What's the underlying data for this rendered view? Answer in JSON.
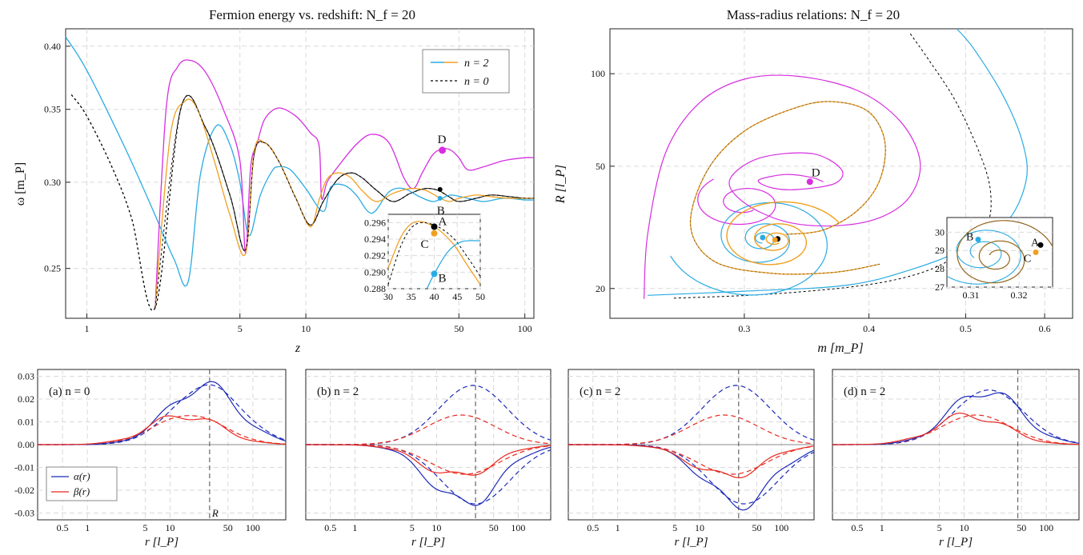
{
  "figure": {
    "top_left": {
      "title": "Fermion energy vs. redshift: N_f = 20",
      "xlabel": "z",
      "ylabel": "ω [m_P]",
      "legend": [
        "n = 2",
        "n = 0"
      ],
      "point_labels": [
        "D",
        "B"
      ],
      "inset_point_labels": [
        "A",
        "C",
        "B"
      ]
    },
    "top_right": {
      "title": "Mass-radius relations: N_f = 20",
      "xlabel": "m [m_P]",
      "ylabel": "R [l_P]",
      "point_labels": [
        "D"
      ],
      "inset_point_labels": [
        "B",
        "A",
        "C"
      ]
    },
    "bottom": {
      "panel_labels": [
        "(a) n = 0",
        "(b) n = 2",
        "(c) n = 2",
        "(d) n = 2"
      ],
      "xlabel": "r [l_P]",
      "legend": [
        "α(r)",
        "β(r)"
      ],
      "radius_label": "R"
    }
  },
  "colors": {
    "cyan": "#29abe2",
    "orange": "#f0a020",
    "magenta": "#d62ee0",
    "black_dashed": "#000000",
    "alpha_blue": "#1c2ab8",
    "beta_red": "#e8281e"
  },
  "chart_data": [
    {
      "type": "line",
      "title": "Fermion energy vs. redshift: N_f = 20",
      "xlabel": "z",
      "ylabel": "ω [m_P]",
      "x_scale": "log",
      "y_scale": "log",
      "xlim": [
        0.8,
        110
      ],
      "ylim": [
        0.225,
        0.415
      ],
      "xticks": [
        1,
        5,
        10,
        50,
        100
      ],
      "yticks": [
        0.25,
        0.3,
        0.35,
        0.4
      ],
      "series": [
        {
          "name": "n = 0",
          "color": "#000000",
          "dashed": true,
          "x": [
            0.85,
            1,
            1.3,
            1.6,
            2.05,
            2.7,
            3.5,
            4.5,
            5.3,
            5.8,
            6.5,
            7.5,
            9,
            10.5,
            12,
            14,
            16,
            18,
            21,
            25,
            30,
            35,
            40,
            45,
            50,
            60,
            70,
            85,
            100,
            110
          ],
          "y": [
            0.361,
            0.345,
            0.31,
            0.278,
            0.23,
            0.352,
            0.336,
            0.292,
            0.26,
            0.318,
            0.326,
            0.314,
            0.29,
            0.274,
            0.288,
            0.302,
            0.306,
            0.303,
            0.295,
            0.288,
            0.293,
            0.296,
            0.295,
            0.291,
            0.288,
            0.29,
            0.292,
            0.291,
            0.29,
            0.29
          ]
        },
        {
          "name": "n = 2 (cyan)",
          "color": "#29abe2",
          "x": [
            0.8,
            1,
            1.5,
            2,
            2.5,
            2.9,
            3.3,
            3.9,
            4.5,
            5,
            5.5,
            6.2,
            7,
            7.5,
            8.5,
            10,
            12,
            13,
            15,
            17,
            20,
            24,
            28,
            33,
            38,
            42,
            46,
            55,
            65,
            80,
            100,
            110
          ],
          "y": [
            0.408,
            0.38,
            0.322,
            0.283,
            0.255,
            0.243,
            0.305,
            0.338,
            0.325,
            0.3,
            0.268,
            0.292,
            0.307,
            0.31,
            0.308,
            0.296,
            0.282,
            0.297,
            0.298,
            0.292,
            0.281,
            0.294,
            0.296,
            0.291,
            0.288,
            0.29,
            0.292,
            0.29,
            0.288,
            0.29,
            0.289,
            0.289
          ]
        },
        {
          "name": "n = 2 (orange)",
          "color": "#f0a020",
          "x": [
            2.05,
            2.4,
            2.8,
            3.2,
            3.8,
            4.5,
            5.3,
            5.8,
            6.5,
            7.5,
            9,
            10.5,
            11.5,
            12.5,
            14,
            16,
            18,
            21,
            25,
            30,
            35,
            40,
            45,
            50,
            60,
            70,
            85,
            100,
            110
          ],
          "y": [
            0.23,
            0.33,
            0.356,
            0.35,
            0.315,
            0.28,
            0.258,
            0.32,
            0.326,
            0.314,
            0.29,
            0.273,
            0.289,
            0.302,
            0.306,
            0.303,
            0.295,
            0.288,
            0.293,
            0.296,
            0.295,
            0.291,
            0.288,
            0.29,
            0.292,
            0.291,
            0.29,
            0.29,
            0.29
          ]
        },
        {
          "name": "n = 2 (magenta)",
          "color": "#d62ee0",
          "x": [
            2.05,
            2.3,
            2.6,
            3,
            3.5,
            4.2,
            5,
            5.3,
            5.6,
            6,
            6.5,
            7.5,
            9,
            10.5,
            11.5,
            11.8,
            12.5,
            14,
            17,
            20,
            24,
            28,
            31,
            34,
            38,
            42,
            46,
            50,
            55,
            65,
            80,
            100,
            110
          ],
          "y": [
            0.23,
            0.35,
            0.383,
            0.388,
            0.378,
            0.35,
            0.314,
            0.258,
            0.31,
            0.326,
            0.343,
            0.351,
            0.345,
            0.333,
            0.324,
            0.29,
            0.3,
            0.31,
            0.325,
            0.332,
            0.326,
            0.303,
            0.296,
            0.306,
            0.318,
            0.322,
            0.321,
            0.316,
            0.308,
            0.31,
            0.314,
            0.316,
            0.316
          ]
        }
      ],
      "points": [
        {
          "label": "D",
          "x": 42,
          "y": 0.321,
          "color": "#d62ee0"
        },
        {
          "label": "B",
          "x": 41,
          "y": 0.29,
          "color": "#29abe2"
        },
        {
          "label": "A",
          "x": 41,
          "y": 0.2955,
          "color": "#000000"
        }
      ],
      "inset": {
        "xlim": [
          30,
          50
        ],
        "ylim": [
          0.288,
          0.297
        ],
        "xticks": [
          30,
          35,
          40,
          45,
          50
        ],
        "yticks": [
          0.288,
          0.29,
          0.292,
          0.294,
          0.296
        ],
        "points": [
          {
            "label": "A",
            "x": 40,
            "y": 0.2955
          },
          {
            "label": "C",
            "x": 40,
            "y": 0.2947
          },
          {
            "label": "B",
            "x": 40,
            "y": 0.2898
          }
        ]
      }
    },
    {
      "type": "line",
      "title": "Mass-radius relations: N_f = 20",
      "xlabel": "m [m_P]",
      "ylabel": "R [l_P]",
      "x_scale": "log",
      "y_scale": "log",
      "xlim": [
        0.22,
        0.64
      ],
      "ylim": [
        16,
        140
      ],
      "xticks": [
        0.3,
        0.4,
        0.5,
        0.6
      ],
      "yticks": [
        20,
        50,
        100
      ],
      "points": [
        {
          "label": "D",
          "x": 0.349,
          "y": 44.5,
          "color": "#d62ee0"
        },
        {
          "label": "A",
          "x": 0.324,
          "y": 29,
          "color": "#000000"
        }
      ],
      "inset": {
        "xlim": [
          0.305,
          0.327
        ],
        "ylim": [
          27,
          30.8
        ],
        "xticks": [
          0.31,
          0.32
        ],
        "yticks": [
          27,
          28,
          29,
          30
        ],
        "points": [
          {
            "label": "B",
            "x": 0.3115,
            "y": 29.6
          },
          {
            "label": "A",
            "x": 0.3245,
            "y": 29.3
          },
          {
            "label": "C",
            "x": 0.3235,
            "y": 28.9
          }
        ]
      }
    },
    {
      "type": "line",
      "panels": [
        "(a) n = 0",
        "(b) n = 2",
        "(c) n = 2",
        "(d) n = 2"
      ],
      "xlabel": "r [l_P]",
      "x_scale": "log",
      "xlim": [
        0.25,
        250
      ],
      "ylim": [
        -0.033,
        0.033
      ],
      "xticks": [
        0.5,
        1,
        5,
        10,
        50,
        100
      ],
      "yticks": [
        -0.03,
        -0.02,
        -0.01,
        0.0,
        0.01,
        0.02,
        0.03
      ],
      "legend": [
        "α(r)",
        "β(r)"
      ],
      "radius_marker_r": [
        30,
        30,
        30,
        45
      ]
    }
  ]
}
